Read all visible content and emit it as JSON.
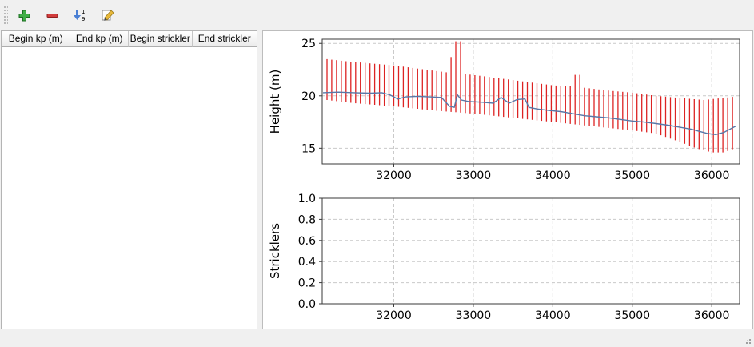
{
  "toolbar": {
    "buttons": [
      {
        "icon": "add-icon"
      },
      {
        "icon": "remove-icon"
      },
      {
        "icon": "sort-numeric-icon"
      },
      {
        "icon": "edit-icon"
      }
    ]
  },
  "table": {
    "columns": [
      "Begin kp (m)",
      "End kp (m)",
      "Begin strickler",
      "End strickler"
    ],
    "rows": []
  },
  "chart_data": [
    {
      "type": "line",
      "title": "",
      "xlabel": "",
      "ylabel": "Height (m)",
      "xlim": [
        31100,
        36350
      ],
      "ylim": [
        13.5,
        25.4
      ],
      "xticks": [
        32000,
        33000,
        34000,
        35000,
        36000
      ],
      "xtick_labels": [
        "32000",
        "33000",
        "34000",
        "35000",
        "36000"
      ],
      "yticks": [
        15,
        20,
        25
      ],
      "ytick_labels": [
        "15",
        "20",
        "25"
      ],
      "grid": true,
      "series": [
        {
          "name": "cross-section-extent-bars",
          "type": "range-bars",
          "color": "#dd2222",
          "step": 60,
          "x_start": 31160,
          "x_end": 36260,
          "upper": [
            [
              31160,
              23.5
            ],
            [
              31400,
              23.3
            ],
            [
              31700,
              23.1
            ],
            [
              32000,
              22.9
            ],
            [
              32300,
              22.6
            ],
            [
              32600,
              22.3
            ],
            [
              32710,
              22.2
            ],
            [
              32730,
              25.2
            ],
            [
              32850,
              25.2
            ],
            [
              32870,
              22.1
            ],
            [
              33100,
              21.9
            ],
            [
              33400,
              21.6
            ],
            [
              33700,
              21.3
            ],
            [
              34000,
              21.0
            ],
            [
              34250,
              20.9
            ],
            [
              34270,
              22.0
            ],
            [
              34350,
              22.0
            ],
            [
              34370,
              20.8
            ],
            [
              34700,
              20.5
            ],
            [
              35000,
              20.3
            ],
            [
              35300,
              20.0
            ],
            [
              35600,
              19.8
            ],
            [
              35900,
              19.6
            ],
            [
              36260,
              19.9
            ]
          ],
          "lower": [
            [
              31160,
              19.6
            ],
            [
              31500,
              19.3
            ],
            [
              32000,
              19.0
            ],
            [
              32500,
              18.6
            ],
            [
              33000,
              18.3
            ],
            [
              33500,
              17.9
            ],
            [
              34000,
              17.5
            ],
            [
              34500,
              17.1
            ],
            [
              35000,
              16.7
            ],
            [
              35300,
              16.4
            ],
            [
              35600,
              15.6
            ],
            [
              35800,
              15.0
            ],
            [
              36000,
              14.6
            ],
            [
              36150,
              14.6
            ],
            [
              36260,
              14.9
            ]
          ]
        },
        {
          "name": "water-level-line",
          "type": "line",
          "color": "#5878a8",
          "points": [
            [
              31110,
              20.3
            ],
            [
              31300,
              20.35
            ],
            [
              31500,
              20.3
            ],
            [
              31700,
              20.25
            ],
            [
              31850,
              20.3
            ],
            [
              31950,
              20.1
            ],
            [
              32050,
              19.7
            ],
            [
              32150,
              19.9
            ],
            [
              32300,
              19.95
            ],
            [
              32450,
              19.9
            ],
            [
              32600,
              19.85
            ],
            [
              32700,
              19.0
            ],
            [
              32760,
              18.9
            ],
            [
              32800,
              20.1
            ],
            [
              32850,
              19.6
            ],
            [
              32950,
              19.45
            ],
            [
              33100,
              19.4
            ],
            [
              33250,
              19.3
            ],
            [
              33350,
              19.85
            ],
            [
              33450,
              19.3
            ],
            [
              33550,
              19.65
            ],
            [
              33650,
              19.7
            ],
            [
              33700,
              18.9
            ],
            [
              33800,
              18.75
            ],
            [
              33950,
              18.6
            ],
            [
              34100,
              18.5
            ],
            [
              34250,
              18.3
            ],
            [
              34400,
              18.1
            ],
            [
              34550,
              18.0
            ],
            [
              34700,
              17.9
            ],
            [
              34850,
              17.75
            ],
            [
              35000,
              17.6
            ],
            [
              35150,
              17.5
            ],
            [
              35300,
              17.35
            ],
            [
              35450,
              17.2
            ],
            [
              35600,
              17.0
            ],
            [
              35750,
              16.8
            ],
            [
              35850,
              16.6
            ],
            [
              35950,
              16.4
            ],
            [
              36050,
              16.3
            ],
            [
              36150,
              16.5
            ],
            [
              36300,
              17.1
            ]
          ]
        }
      ]
    },
    {
      "type": "line",
      "title": "",
      "xlabel": "",
      "ylabel": "Stricklers",
      "xlim": [
        31100,
        36350
      ],
      "ylim": [
        0,
        1
      ],
      "xticks": [
        32000,
        33000,
        34000,
        35000,
        36000
      ],
      "xtick_labels": [
        "32000",
        "33000",
        "34000",
        "35000",
        "36000"
      ],
      "yticks": [
        0,
        0.2,
        0.4,
        0.6,
        0.8,
        1.0
      ],
      "ytick_labels": [
        "0.0",
        "0.2",
        "0.4",
        "0.6",
        "0.8",
        "1.0"
      ],
      "grid": true,
      "series": []
    }
  ]
}
